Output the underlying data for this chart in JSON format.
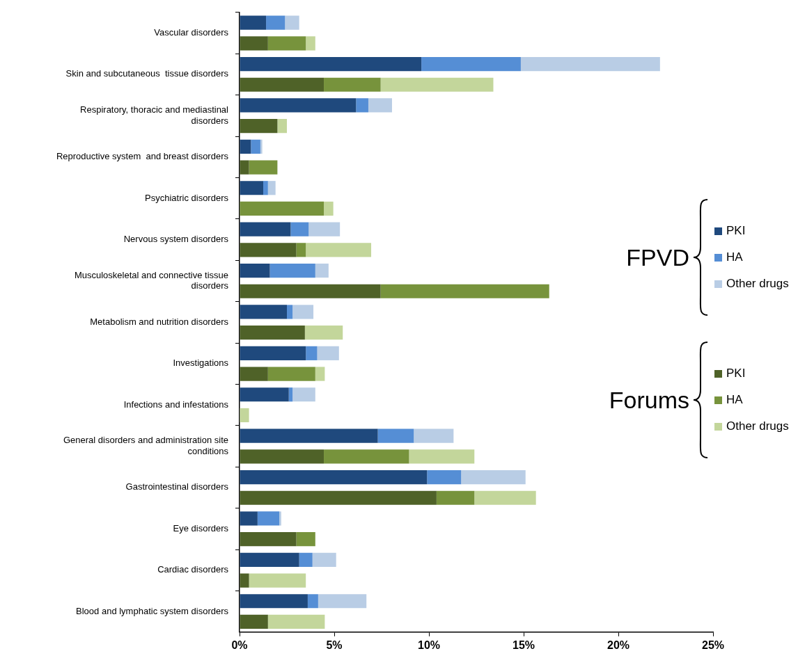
{
  "chart_data": {
    "type": "bar",
    "orientation": "horizontal",
    "stacked": true,
    "grid": false,
    "legend": "right",
    "categories": [
      "Vascular disorders",
      null,
      "Skin and subcutaneous  tissue disorders",
      null,
      "Respiratory, thoracic and mediastinal disorders",
      null,
      "Reproductive system  and breast disorders",
      null,
      "Psychiatric disorders",
      null,
      "Nervous system disorders",
      null,
      "Musculoskeletal and connective tissue disorders",
      null,
      "Metabolism and nutrition disorders",
      null,
      "Investigations",
      null,
      "Infections and infestations",
      null,
      "General disorders and administration site conditions",
      null,
      "Gastrointestinal disorders",
      null,
      "Eye disorders",
      null,
      "Cardiac disorders",
      null,
      "Blood and lymphatic system disorders",
      null
    ],
    "series": [
      {
        "name": "PKI",
        "color": "#1f497d",
        "values": [
          1.4,
          null,
          9.6,
          null,
          6.15,
          null,
          0.6,
          null,
          1.25,
          null,
          2.7,
          null,
          1.6,
          null,
          2.5,
          null,
          3.5,
          null,
          2.6,
          null,
          7.3,
          null,
          9.9,
          null,
          0.95,
          null,
          3.15,
          null,
          3.6,
          null
        ]
      },
      {
        "name": "HA",
        "color": "#558ed5",
        "values": [
          1.0,
          null,
          5.25,
          null,
          0.65,
          null,
          0.5,
          null,
          0.25,
          null,
          0.95,
          null,
          2.4,
          null,
          0.3,
          null,
          0.6,
          null,
          0.2,
          null,
          1.9,
          null,
          1.8,
          null,
          1.15,
          null,
          0.7,
          null,
          0.55,
          null
        ]
      },
      {
        "name": "Other drugs",
        "color": "#b9cde5",
        "values": [
          0.75,
          null,
          7.35,
          null,
          1.25,
          null,
          0.1,
          null,
          0.4,
          null,
          1.65,
          null,
          0.7,
          null,
          1.1,
          null,
          1.15,
          null,
          1.2,
          null,
          2.1,
          null,
          3.4,
          null,
          0.1,
          null,
          1.25,
          null,
          2.55,
          null
        ]
      },
      {
        "name": "PKI",
        "color": "#4f6228",
        "values": [
          null,
          1.5,
          null,
          4.45,
          null,
          2.0,
          null,
          0.5,
          null,
          0,
          null,
          3.0,
          null,
          7.45,
          null,
          3.45,
          null,
          1.5,
          null,
          0,
          null,
          4.45,
          null,
          10.4,
          null,
          3.0,
          null,
          0.5,
          null,
          1.5
        ]
      },
      {
        "name": "HA",
        "color": "#77933c",
        "values": [
          null,
          2.0,
          null,
          3.0,
          null,
          0,
          null,
          1.5,
          null,
          4.45,
          null,
          0.5,
          null,
          8.9,
          null,
          0,
          null,
          2.5,
          null,
          0,
          null,
          4.5,
          null,
          2.0,
          null,
          1.0,
          null,
          0,
          null,
          0
        ]
      },
      {
        "name": "Other drugs",
        "color": "#c3d69b",
        "values": [
          null,
          0.5,
          null,
          5.95,
          null,
          0.5,
          null,
          0,
          null,
          0.5,
          null,
          3.45,
          null,
          0,
          null,
          2.0,
          null,
          0.5,
          null,
          0.5,
          null,
          3.45,
          null,
          3.25,
          null,
          0,
          null,
          3.0,
          null,
          3.0
        ]
      }
    ],
    "xlim": [
      0,
      25
    ],
    "xticks": [
      {
        "value": 0,
        "label": "0%"
      },
      {
        "value": 5,
        "label": "5%"
      },
      {
        "value": 10,
        "label": "10%"
      },
      {
        "value": 15,
        "label": "15%"
      },
      {
        "value": 20,
        "label": "20%"
      },
      {
        "value": 25,
        "label": "25%"
      }
    ],
    "annotations": [
      "FPVD",
      "Forums"
    ]
  }
}
